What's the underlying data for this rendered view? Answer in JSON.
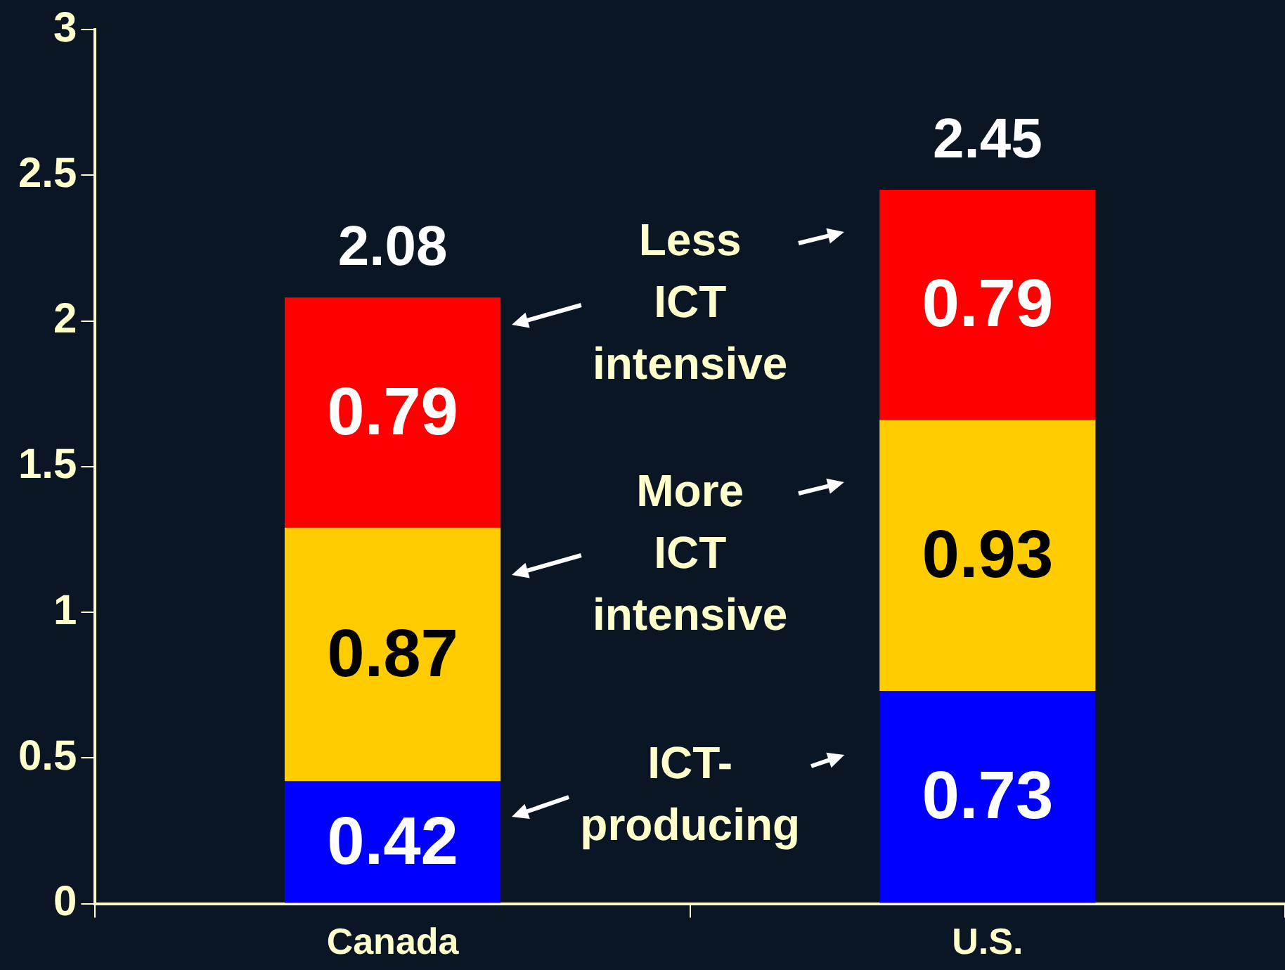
{
  "chart_data": {
    "type": "bar",
    "stacked": true,
    "categories": [
      "Canada",
      "U.S."
    ],
    "series": [
      {
        "name": "ICT-producing",
        "color": "#0000ff",
        "values": [
          0.42,
          0.73
        ]
      },
      {
        "name": "More ICT intensive",
        "color": "#ffcc00",
        "values": [
          0.87,
          0.93
        ]
      },
      {
        "name": "Less ICT intensive",
        "color": "#ff0000",
        "values": [
          0.79,
          0.79
        ]
      }
    ],
    "totals": [
      "2.08",
      "2.45"
    ],
    "data_labels": true,
    "legend": false,
    "grid": false,
    "ylim": [
      0,
      3
    ],
    "yticks": [
      0,
      0.5,
      1,
      1.5,
      2,
      2.5,
      3
    ]
  }
}
